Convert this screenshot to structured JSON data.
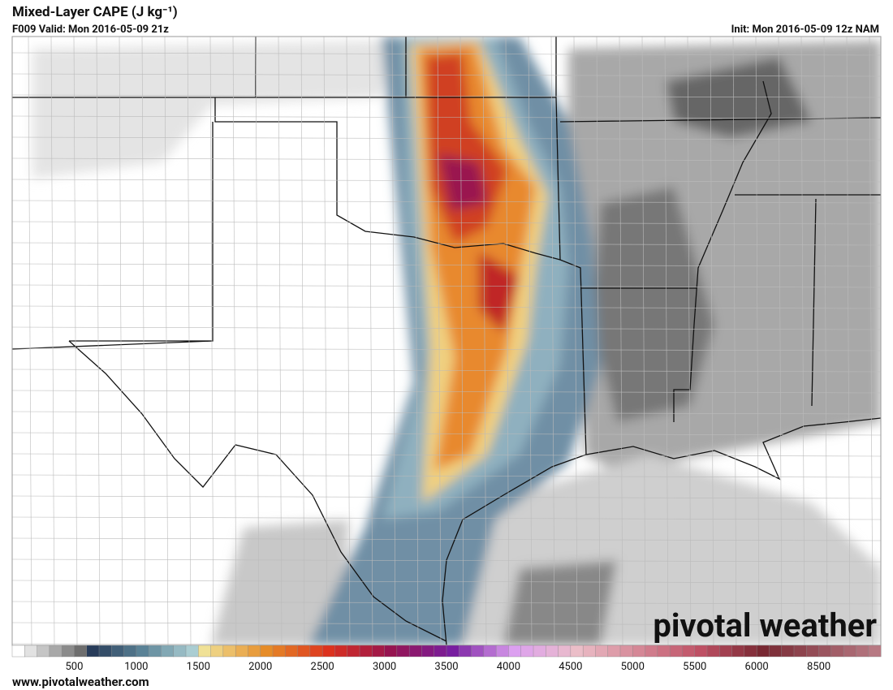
{
  "header": {
    "title": "Mixed-Layer CAPE (J kg⁻¹)",
    "valid": "F009 Valid: Mon 2016-05-09 21z",
    "init": "Init: Mon 2016-05-09 12z NAM"
  },
  "colorbar": {
    "labels": [
      500,
      1000,
      1500,
      2000,
      2500,
      3000,
      3500,
      4000,
      4500,
      5000,
      5500,
      6000,
      8500
    ]
  },
  "logo": "pivotal weather",
  "footer": {
    "website": "www.pivotalweather.com"
  }
}
